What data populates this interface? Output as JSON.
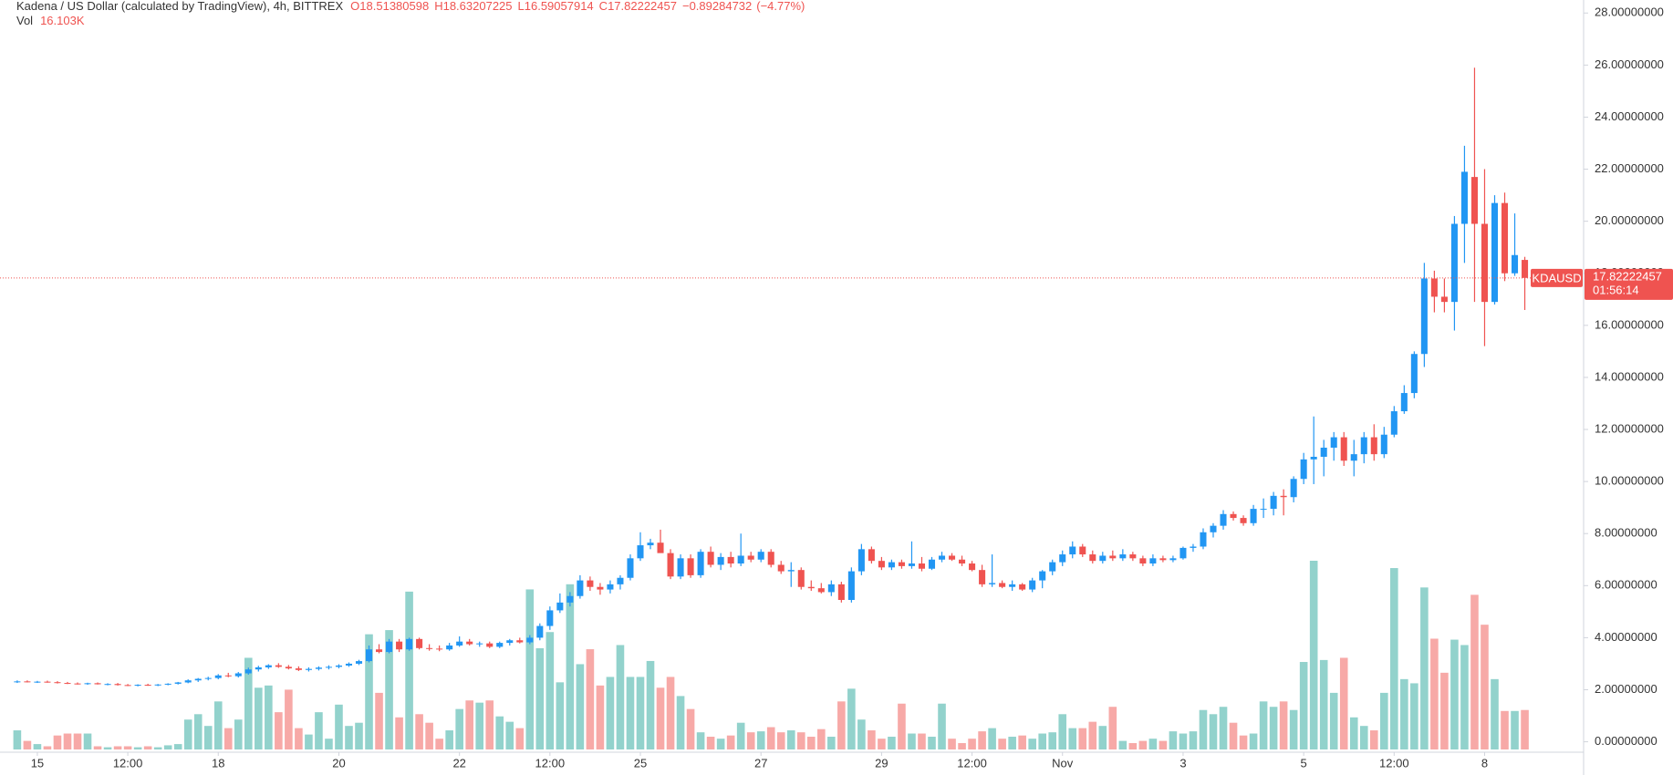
{
  "chart_data": {
    "type": "candlestick",
    "title": "Kadena / US Dollar (calculated by TradingView), 4h, BITTREX",
    "symbol": "KDAUSD",
    "countdown": "01:56:14",
    "ohlc_letters": [
      "O",
      "H",
      "L",
      "C"
    ],
    "change": {
      "value": -0.89284732,
      "label": "−0.89284732"
    },
    "change_pct": {
      "value": -4.77,
      "label": "(−4.77%)"
    },
    "up_color": "#2196f3",
    "down_color": "#ef5350",
    "volume_up_color": "#92d2cc",
    "volume_down_color": "#f7a9a7",
    "ylim": [
      -0.4,
      28.5
    ],
    "yticks": [
      {
        "value": 0,
        "label": "0.00000000"
      },
      {
        "value": 2,
        "label": "2.00000000"
      },
      {
        "value": 4,
        "label": "4.00000000"
      },
      {
        "value": 6,
        "label": "6.00000000"
      },
      {
        "value": 8,
        "label": "8.00000000"
      },
      {
        "value": 10,
        "label": "10.00000000"
      },
      {
        "value": 12,
        "label": "12.00000000"
      },
      {
        "value": 14,
        "label": "14.00000000"
      },
      {
        "value": 16,
        "label": "16.00000000"
      },
      {
        "value": 18,
        "label": "18.00000000"
      },
      {
        "value": 20,
        "label": "20.00000000"
      },
      {
        "value": 22,
        "label": "22.00000000"
      },
      {
        "value": 24,
        "label": "24.00000000"
      },
      {
        "value": 26,
        "label": "26.00000000"
      },
      {
        "value": 28,
        "label": "28.00000000"
      }
    ],
    "categories": [
      null,
      null,
      "15",
      null,
      null,
      null,
      null,
      null,
      null,
      null,
      null,
      "12:00",
      null,
      null,
      null,
      null,
      null,
      null,
      null,
      null,
      "18",
      null,
      null,
      null,
      null,
      null,
      null,
      null,
      null,
      null,
      null,
      null,
      "20",
      null,
      null,
      null,
      null,
      null,
      null,
      null,
      null,
      null,
      null,
      null,
      "22",
      null,
      null,
      null,
      null,
      null,
      null,
      null,
      null,
      "12:00",
      null,
      null,
      null,
      null,
      null,
      null,
      null,
      null,
      "25",
      null,
      null,
      null,
      null,
      null,
      null,
      null,
      null,
      null,
      null,
      null,
      "27",
      null,
      null,
      null,
      null,
      null,
      null,
      null,
      null,
      null,
      null,
      null,
      "29",
      null,
      null,
      null,
      null,
      null,
      null,
      null,
      null,
      "12:00",
      null,
      null,
      null,
      null,
      null,
      null,
      null,
      null,
      "Nov",
      null,
      null,
      null,
      null,
      null,
      null,
      null,
      null,
      null,
      null,
      null,
      "3",
      null,
      null,
      null,
      null,
      null,
      null,
      null,
      null,
      null,
      null,
      null,
      "5",
      null,
      null,
      null,
      null,
      null,
      null,
      null,
      null,
      "12:00",
      null,
      null,
      null,
      null,
      null,
      null,
      null,
      null,
      "8",
      null,
      null,
      null,
      null
    ],
    "candles": [
      [
        2.3,
        2.36,
        2.26,
        2.32
      ],
      [
        2.32,
        2.36,
        2.28,
        2.3
      ],
      [
        2.3,
        2.34,
        2.26,
        2.31
      ],
      [
        2.31,
        2.35,
        2.27,
        2.29
      ],
      [
        2.29,
        2.33,
        2.24,
        2.26
      ],
      [
        2.26,
        2.3,
        2.22,
        2.24
      ],
      [
        2.24,
        2.28,
        2.2,
        2.22
      ],
      [
        2.22,
        2.27,
        2.19,
        2.25
      ],
      [
        2.25,
        2.28,
        2.2,
        2.21
      ],
      [
        2.21,
        2.25,
        2.17,
        2.22
      ],
      [
        2.22,
        2.26,
        2.16,
        2.18
      ],
      [
        2.18,
        2.22,
        2.14,
        2.16
      ],
      [
        2.16,
        2.21,
        2.13,
        2.19
      ],
      [
        2.19,
        2.23,
        2.15,
        2.17
      ],
      [
        2.17,
        2.22,
        2.14,
        2.2
      ],
      [
        2.2,
        2.25,
        2.17,
        2.23
      ],
      [
        2.23,
        2.3,
        2.2,
        2.28
      ],
      [
        2.28,
        2.4,
        2.25,
        2.36
      ],
      [
        2.36,
        2.45,
        2.3,
        2.42
      ],
      [
        2.42,
        2.5,
        2.36,
        2.45
      ],
      [
        2.45,
        2.6,
        2.4,
        2.55
      ],
      [
        2.55,
        2.65,
        2.48,
        2.52
      ],
      [
        2.52,
        2.68,
        2.47,
        2.63
      ],
      [
        2.63,
        2.85,
        2.58,
        2.78
      ],
      [
        2.78,
        2.92,
        2.7,
        2.86
      ],
      [
        2.86,
        2.98,
        2.8,
        2.94
      ],
      [
        2.94,
        3.02,
        2.84,
        2.88
      ],
      [
        2.88,
        2.95,
        2.78,
        2.82
      ],
      [
        2.82,
        2.9,
        2.72,
        2.76
      ],
      [
        2.76,
        2.86,
        2.7,
        2.8
      ],
      [
        2.8,
        2.9,
        2.74,
        2.85
      ],
      [
        2.85,
        2.94,
        2.78,
        2.88
      ],
      [
        2.88,
        2.98,
        2.82,
        2.93
      ],
      [
        2.93,
        3.05,
        2.88,
        3.0
      ],
      [
        3.0,
        3.15,
        2.95,
        3.1
      ],
      [
        3.1,
        3.7,
        3.05,
        3.55
      ],
      [
        3.55,
        3.75,
        3.4,
        3.45
      ],
      [
        3.45,
        3.95,
        3.4,
        3.85
      ],
      [
        3.85,
        3.95,
        3.45,
        3.55
      ],
      [
        3.55,
        4.0,
        3.5,
        3.95
      ],
      [
        3.95,
        4.0,
        3.55,
        3.6
      ],
      [
        3.6,
        3.75,
        3.5,
        3.58
      ],
      [
        3.58,
        3.7,
        3.48,
        3.55
      ],
      [
        3.55,
        3.8,
        3.5,
        3.7
      ],
      [
        3.7,
        4.05,
        3.65,
        3.85
      ],
      [
        3.85,
        3.95,
        3.7,
        3.75
      ],
      [
        3.75,
        3.85,
        3.65,
        3.78
      ],
      [
        3.78,
        3.85,
        3.6,
        3.65
      ],
      [
        3.65,
        3.85,
        3.6,
        3.8
      ],
      [
        3.8,
        3.95,
        3.7,
        3.9
      ],
      [
        3.9,
        4.0,
        3.78,
        3.82
      ],
      [
        3.82,
        4.1,
        3.75,
        4.0
      ],
      [
        4.0,
        4.55,
        3.9,
        4.45
      ],
      [
        4.45,
        5.2,
        4.3,
        5.05
      ],
      [
        5.05,
        5.7,
        4.95,
        5.35
      ],
      [
        5.35,
        5.75,
        5.2,
        5.6
      ],
      [
        5.6,
        6.4,
        5.5,
        6.2
      ],
      [
        6.2,
        6.35,
        5.8,
        5.95
      ],
      [
        5.95,
        6.1,
        5.65,
        5.85
      ],
      [
        5.85,
        6.2,
        5.7,
        6.05
      ],
      [
        6.05,
        6.4,
        5.85,
        6.3
      ],
      [
        6.3,
        7.2,
        6.2,
        7.05
      ],
      [
        7.05,
        8.05,
        6.95,
        7.55
      ],
      [
        7.55,
        7.8,
        7.4,
        7.65
      ],
      [
        7.65,
        8.15,
        7.3,
        7.25
      ],
      [
        7.25,
        7.4,
        6.25,
        6.35
      ],
      [
        6.35,
        7.2,
        6.25,
        7.05
      ],
      [
        7.05,
        7.2,
        6.3,
        6.4
      ],
      [
        6.4,
        7.4,
        6.3,
        7.3
      ],
      [
        7.3,
        7.5,
        6.7,
        6.8
      ],
      [
        6.8,
        7.25,
        6.6,
        7.1
      ],
      [
        7.1,
        7.3,
        6.7,
        6.85
      ],
      [
        6.85,
        8.0,
        6.75,
        7.15
      ],
      [
        7.15,
        7.3,
        6.9,
        7.0
      ],
      [
        7.0,
        7.4,
        6.9,
        7.3
      ],
      [
        7.3,
        7.4,
        6.7,
        6.8
      ],
      [
        6.8,
        6.95,
        6.45,
        6.55
      ],
      [
        6.55,
        6.9,
        5.95,
        6.6
      ],
      [
        6.6,
        6.7,
        5.85,
        5.95
      ],
      [
        5.95,
        6.2,
        5.8,
        5.9
      ],
      [
        5.9,
        6.1,
        5.7,
        5.75
      ],
      [
        5.75,
        6.2,
        5.6,
        6.05
      ],
      [
        6.05,
        6.15,
        5.35,
        5.45
      ],
      [
        5.45,
        6.7,
        5.35,
        6.55
      ],
      [
        6.55,
        7.6,
        6.4,
        7.4
      ],
      [
        7.4,
        7.5,
        6.85,
        6.95
      ],
      [
        6.95,
        7.1,
        6.6,
        6.7
      ],
      [
        6.7,
        7.0,
        6.6,
        6.9
      ],
      [
        6.9,
        7.0,
        6.65,
        6.75
      ],
      [
        6.75,
        7.7,
        6.65,
        6.85
      ],
      [
        6.85,
        7.1,
        6.55,
        6.65
      ],
      [
        6.65,
        7.1,
        6.6,
        7.0
      ],
      [
        7.0,
        7.3,
        6.9,
        7.15
      ],
      [
        7.15,
        7.25,
        6.95,
        7.0
      ],
      [
        7.0,
        7.15,
        6.75,
        6.85
      ],
      [
        6.85,
        6.95,
        6.55,
        6.6
      ],
      [
        6.6,
        6.8,
        5.95,
        6.05
      ],
      [
        6.05,
        7.2,
        5.95,
        6.1
      ],
      [
        6.1,
        6.2,
        5.9,
        5.95
      ],
      [
        5.95,
        6.2,
        5.8,
        6.05
      ],
      [
        6.05,
        6.1,
        5.8,
        5.85
      ],
      [
        5.85,
        6.3,
        5.75,
        6.2
      ],
      [
        6.2,
        6.6,
        5.9,
        6.55
      ],
      [
        6.55,
        7.0,
        6.4,
        6.9
      ],
      [
        6.9,
        7.35,
        6.75,
        7.2
      ],
      [
        7.2,
        7.7,
        7.05,
        7.5
      ],
      [
        7.5,
        7.6,
        7.1,
        7.2
      ],
      [
        7.2,
        7.35,
        6.85,
        6.95
      ],
      [
        6.95,
        7.3,
        6.85,
        7.15
      ],
      [
        7.15,
        7.35,
        6.95,
        7.05
      ],
      [
        7.05,
        7.4,
        6.95,
        7.2
      ],
      [
        7.2,
        7.3,
        6.95,
        7.05
      ],
      [
        7.05,
        7.15,
        6.75,
        6.85
      ],
      [
        6.85,
        7.2,
        6.75,
        7.05
      ],
      [
        7.05,
        7.15,
        6.9,
        6.98
      ],
      [
        6.98,
        7.15,
        6.9,
        7.05
      ],
      [
        7.05,
        7.5,
        7.0,
        7.45
      ],
      [
        7.45,
        7.6,
        7.3,
        7.5
      ],
      [
        7.5,
        8.2,
        7.4,
        8.05
      ],
      [
        8.05,
        8.4,
        7.85,
        8.3
      ],
      [
        8.3,
        8.9,
        8.15,
        8.75
      ],
      [
        8.75,
        8.85,
        8.5,
        8.6
      ],
      [
        8.6,
        8.7,
        8.3,
        8.4
      ],
      [
        8.4,
        9.1,
        8.3,
        8.95
      ],
      [
        8.95,
        9.35,
        8.6,
        8.95
      ],
      [
        8.95,
        9.6,
        8.7,
        9.45
      ],
      [
        9.45,
        9.7,
        8.7,
        9.4
      ],
      [
        9.4,
        10.2,
        9.2,
        10.1
      ],
      [
        10.1,
        11.1,
        9.9,
        10.85
      ],
      [
        10.85,
        12.5,
        9.9,
        10.95
      ],
      [
        10.95,
        11.6,
        10.2,
        11.3
      ],
      [
        11.3,
        11.9,
        10.8,
        11.7
      ],
      [
        11.7,
        11.9,
        10.6,
        10.8
      ],
      [
        10.8,
        11.6,
        10.2,
        11.05
      ],
      [
        11.05,
        11.9,
        10.7,
        11.7
      ],
      [
        11.7,
        12.2,
        10.8,
        11.05
      ],
      [
        11.05,
        12.1,
        10.9,
        11.8
      ],
      [
        11.8,
        12.9,
        11.7,
        12.7
      ],
      [
        12.7,
        13.7,
        12.6,
        13.4
      ],
      [
        13.4,
        15.0,
        13.2,
        14.9
      ],
      [
        14.9,
        18.4,
        14.4,
        17.8
      ],
      [
        17.8,
        18.1,
        16.5,
        17.1
      ],
      [
        17.1,
        17.8,
        16.5,
        16.9
      ],
      [
        16.9,
        20.2,
        15.8,
        19.9
      ],
      [
        19.9,
        22.9,
        18.4,
        21.9
      ],
      [
        21.7,
        25.9,
        16.9,
        19.9
      ],
      [
        19.9,
        22.0,
        15.2,
        16.9
      ],
      [
        16.9,
        21.0,
        16.8,
        20.7
      ],
      [
        20.7,
        21.1,
        17.7,
        18.0
      ],
      [
        18.0,
        20.3,
        17.9,
        18.7
      ],
      [
        18.51380598,
        18.63207225,
        16.59057914,
        17.82222457
      ]
    ],
    "volume": {
      "name": "Vol",
      "value_label": "16.103K",
      "values": [
        7.8,
        3.5,
        2.2,
        1.3,
        5.7,
        6.5,
        6.5,
        6.5,
        1.3,
        0.9,
        1.3,
        1.3,
        0.9,
        1.3,
        0.9,
        1.7,
        2.2,
        12.2,
        14.4,
        9.6,
        19.6,
        8.7,
        12.2,
        37.4,
        25.2,
        26.1,
        15.2,
        24.4,
        8.7,
        6.1,
        15.2,
        4.4,
        18.3,
        9.6,
        10.9,
        47.0,
        23.1,
        48.7,
        13.1,
        64.4,
        14.4,
        10.9,
        4.4,
        7.8,
        16.5,
        20.0,
        19.1,
        20.0,
        13.5,
        11.3,
        8.7,
        65.3,
        41.3,
        47.9,
        27.4,
        67.4,
        34.8,
        40.9,
        26.1,
        29.6,
        42.6,
        29.6,
        29.6,
        36.1,
        25.2,
        29.6,
        21.8,
        16.5,
        7.0,
        5.2,
        4.4,
        5.7,
        10.9,
        7.0,
        7.4,
        9.1,
        7.0,
        7.8,
        7.0,
        5.2,
        8.3,
        5.2,
        19.6,
        24.8,
        12.2,
        7.8,
        4.4,
        5.2,
        18.7,
        6.5,
        6.5,
        5.2,
        18.7,
        4.4,
        2.6,
        4.4,
        7.4,
        8.7,
        4.4,
        5.2,
        5.7,
        4.4,
        6.5,
        7.0,
        14.4,
        8.7,
        8.7,
        11.3,
        9.6,
        17.4,
        3.5,
        2.6,
        3.5,
        4.4,
        3.5,
        7.4,
        6.5,
        7.4,
        16.1,
        14.4,
        17.4,
        10.9,
        5.7,
        6.5,
        19.6,
        17.4,
        19.6,
        16.1,
        35.7,
        77.0,
        36.5,
        23.1,
        37.4,
        13.1,
        9.6,
        7.8,
        23.1,
        74.0,
        28.7,
        27.0,
        66.1,
        45.2,
        31.3,
        44.8,
        42.6,
        63.1,
        50.9,
        28.7,
        15.7,
        15.7,
        16.103
      ]
    }
  }
}
